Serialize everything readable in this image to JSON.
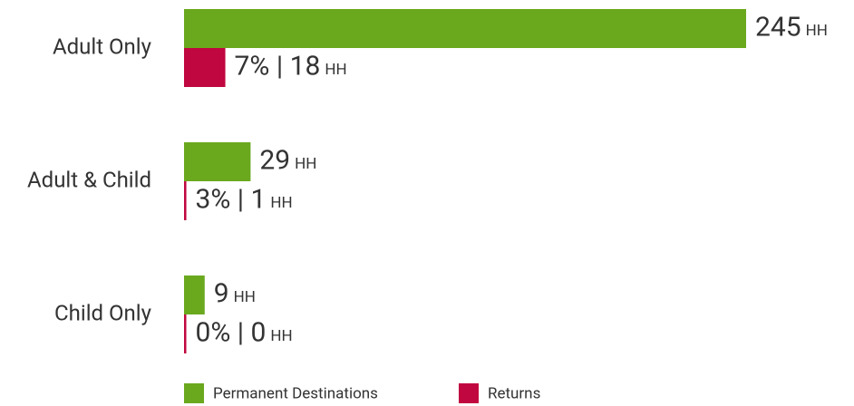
{
  "chart_data": {
    "type": "hbar",
    "categories": [
      "Adult Only",
      "Adult & Child",
      "Child Only"
    ],
    "unit": "HH",
    "series": [
      {
        "name": "Permanent Destinations",
        "color": "#6aa81e",
        "values": [
          245,
          29,
          9
        ]
      },
      {
        "name": "Returns",
        "color": "#c0073f",
        "values": [
          18,
          1,
          0
        ],
        "value_labels": [
          "7% | 18",
          "3% | 1",
          "0% | 0"
        ]
      }
    ],
    "legend": "bottom"
  }
}
